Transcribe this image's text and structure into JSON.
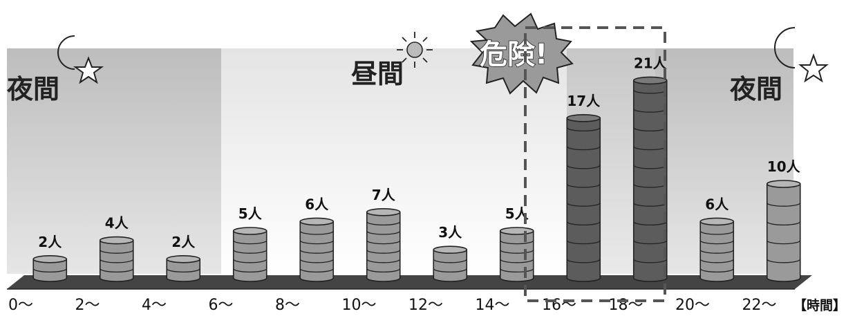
{
  "labels": {
    "night_left": "夜間",
    "day": "昼間",
    "danger": "危険!",
    "night_right": "夜間",
    "x_unit": "【時間】"
  },
  "chart_data": {
    "type": "bar",
    "title": "",
    "xlabel": "【時間】",
    "ylabel": "",
    "categories": [
      "0～",
      "2～",
      "4～",
      "6～",
      "8～",
      "10～",
      "12～",
      "14～",
      "16～",
      "18～",
      "20～",
      "22～"
    ],
    "values": [
      2,
      4,
      2,
      5,
      6,
      7,
      3,
      5,
      17,
      21,
      6,
      10
    ],
    "value_labels": [
      "2人",
      "4人",
      "2人",
      "5人",
      "6人",
      "7人",
      "3人",
      "5人",
      "17人",
      "21人",
      "6人",
      "10人"
    ],
    "unit": "人",
    "bar_style": "stacked-cylinder",
    "highlighted_categories": [
      "16～",
      "18～"
    ],
    "periods": [
      {
        "label": "夜間",
        "start": "0～",
        "end": "6～"
      },
      {
        "label": "昼間",
        "start": "6～",
        "end": "20～"
      },
      {
        "label": "夜間",
        "start": "20～",
        "end": "22～"
      }
    ],
    "colors": {
      "cylinder_normal": "#9a9a9a",
      "cylinder_highlight": "#5c5c5c",
      "night_band": "#c8c8c8",
      "day_band": "#ececec",
      "floor": "#444444"
    },
    "grid": false
  }
}
